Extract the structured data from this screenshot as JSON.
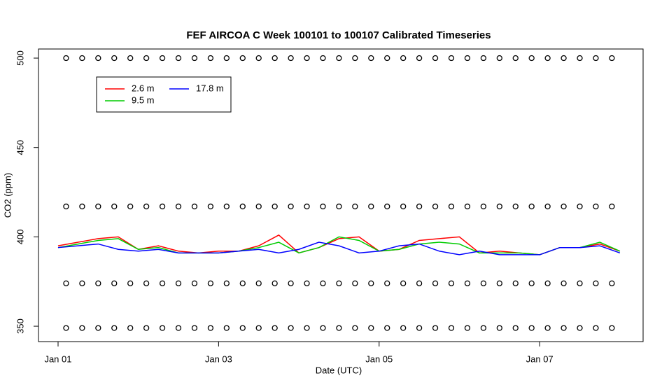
{
  "chart_data": {
    "type": "line",
    "title": "FEF AIRCOA C  Week 100101 to 100107  Calibrated Timeseries",
    "xlabel": "Date (UTC)",
    "ylabel": "CO2 (ppm)",
    "xlim": [
      -0.244,
      7.289
    ],
    "xticks": [
      {
        "value": 0,
        "label": "Jan 01"
      },
      {
        "value": 2,
        "label": "Jan 03"
      },
      {
        "value": 4,
        "label": "Jan 05"
      },
      {
        "value": 6,
        "label": "Jan 07"
      }
    ],
    "ylim": [
      341.4,
      505.1
    ],
    "yticks": [
      350,
      400,
      450,
      500
    ],
    "legend": "top-left",
    "x": [
      0,
      0.25,
      0.5,
      0.75,
      1,
      1.25,
      1.5,
      1.75,
      2,
      2.25,
      2.5,
      2.75,
      3,
      3.25,
      3.5,
      3.75,
      4,
      4.25,
      4.5,
      4.75,
      5,
      5.25,
      5.5,
      5.75,
      6,
      6.25,
      6.5,
      6.75,
      7
    ],
    "series": [
      {
        "name": "2.6 m",
        "color": "#ff0000",
        "values": [
          395,
          397,
          399,
          400,
          393,
          395,
          392,
          391,
          392,
          392,
          395,
          401,
          391,
          394,
          399,
          400,
          392,
          393,
          398,
          399,
          400,
          391,
          392,
          391,
          390,
          394,
          394,
          396,
          392
        ]
      },
      {
        "name": "9.5 m",
        "color": "#00cc00",
        "values": [
          394,
          396,
          398,
          399,
          393,
          394,
          391,
          391,
          391,
          392,
          394,
          397,
          391,
          394,
          400,
          398,
          392,
          393,
          396,
          397,
          396,
          391,
          391,
          391,
          390,
          394,
          394,
          397,
          392
        ]
      },
      {
        "name": "17.8 m",
        "color": "#0000ff",
        "values": [
          394,
          395,
          396,
          393,
          392,
          393,
          391,
          391,
          391,
          392,
          393,
          391,
          393,
          397,
          395,
          391,
          392,
          395,
          396,
          392,
          390,
          392,
          390,
          390,
          390,
          394,
          394,
          395,
          391
        ]
      },
      {
        "color": "#000000",
        "marker": "circle",
        "x": [
          0.1,
          0.3,
          0.5,
          0.7,
          0.9,
          1.1,
          1.3,
          1.5,
          1.7,
          1.9,
          2.1,
          2.3,
          2.5,
          2.7,
          2.9,
          3.1,
          3.3,
          3.5,
          3.7,
          3.9,
          4.1,
          4.3,
          4.5,
          4.7,
          4.9,
          5.1,
          5.3,
          5.5,
          5.7,
          5.9,
          6.1,
          6.3,
          6.5,
          6.7,
          6.9
        ],
        "values": [
          500,
          500,
          500,
          500,
          500,
          500,
          500,
          500,
          500,
          500,
          500,
          500,
          500,
          500,
          500,
          500,
          500,
          500,
          500,
          500,
          500,
          500,
          500,
          500,
          500,
          500,
          500,
          500,
          500,
          500,
          500,
          500,
          500,
          500,
          500
        ]
      },
      {
        "color": "#000000",
        "marker": "circle",
        "x": [
          0.1,
          0.3,
          0.5,
          0.7,
          0.9,
          1.1,
          1.3,
          1.5,
          1.7,
          1.9,
          2.1,
          2.3,
          2.5,
          2.7,
          2.9,
          3.1,
          3.3,
          3.5,
          3.7,
          3.9,
          4.1,
          4.3,
          4.5,
          4.7,
          4.9,
          5.1,
          5.3,
          5.5,
          5.7,
          5.9,
          6.1,
          6.3,
          6.5,
          6.7,
          6.9
        ],
        "values": [
          417,
          417,
          417,
          417,
          417,
          417,
          417,
          417,
          417,
          417,
          417,
          417,
          417,
          417,
          417,
          417,
          417,
          417,
          417,
          417,
          417,
          417,
          417,
          417,
          417,
          417,
          417,
          417,
          417,
          417,
          417,
          417,
          417,
          417,
          417
        ]
      },
      {
        "color": "#000000",
        "marker": "circle",
        "x": [
          0.1,
          0.3,
          0.5,
          0.7,
          0.9,
          1.1,
          1.3,
          1.5,
          1.7,
          1.9,
          2.1,
          2.3,
          2.5,
          2.7,
          2.9,
          3.1,
          3.3,
          3.5,
          3.7,
          3.9,
          4.1,
          4.3,
          4.5,
          4.7,
          4.9,
          5.1,
          5.3,
          5.5,
          5.7,
          5.9,
          6.1,
          6.3,
          6.5,
          6.7,
          6.9
        ],
        "values": [
          374,
          374,
          374,
          374,
          374,
          374,
          374,
          374,
          374,
          374,
          374,
          374,
          374,
          374,
          374,
          374,
          374,
          374,
          374,
          374,
          374,
          374,
          374,
          374,
          374,
          374,
          374,
          374,
          374,
          374,
          374,
          374,
          374,
          374,
          374
        ]
      },
      {
        "color": "#000000",
        "marker": "circle",
        "x": [
          0.1,
          0.3,
          0.5,
          0.7,
          0.9,
          1.1,
          1.3,
          1.5,
          1.7,
          1.9,
          2.1,
          2.3,
          2.5,
          2.7,
          2.9,
          3.1,
          3.3,
          3.5,
          3.7,
          3.9,
          4.1,
          4.3,
          4.5,
          4.7,
          4.9,
          5.1,
          5.3,
          5.5,
          5.7,
          5.9,
          6.1,
          6.3,
          6.5,
          6.7,
          6.9
        ],
        "values": [
          349,
          349,
          349,
          349,
          349,
          349,
          349,
          349,
          349,
          349,
          349,
          349,
          349,
          349,
          349,
          349,
          349,
          349,
          349,
          349,
          349,
          349,
          349,
          349,
          349,
          349,
          349,
          349,
          349,
          349,
          349,
          349,
          349,
          349,
          349
        ]
      }
    ]
  }
}
